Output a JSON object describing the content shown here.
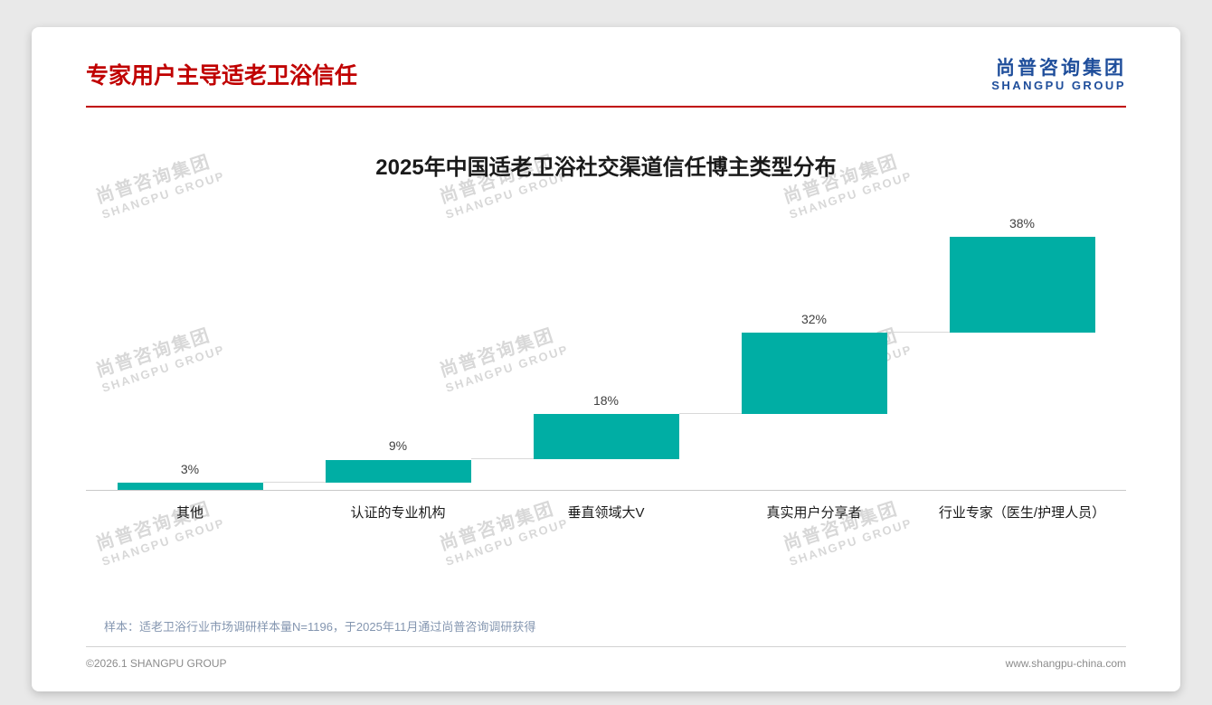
{
  "header": {
    "title": "专家用户主导适老卫浴信任",
    "accent_color": "#c00000"
  },
  "logo": {
    "cn": "尚普咨询集团",
    "en": "SHANGPU GROUP",
    "color": "#1f4e9b"
  },
  "watermark": {
    "cn": "尚普咨询集团",
    "en": "SHANGPU GROUP"
  },
  "chart_data": {
    "type": "bar",
    "subtype": "waterfall",
    "title": "2025年中国适老卫浴社交渠道信任博主类型分布",
    "categories": [
      "其他",
      "认证的专业机构",
      "垂直领域大V",
      "真实用户分享者",
      "行业专家（医生/护理人员）"
    ],
    "values": [
      3,
      9,
      18,
      32,
      38
    ],
    "value_suffix": "%",
    "bar_color": "#00aea4",
    "connector_color": "#d9d9d9",
    "ylim": [
      0,
      100
    ],
    "grid": false,
    "legend": "none"
  },
  "footnote": {
    "sample_note": "样本：适老卫浴行业市场调研样本量N=1196，于2025年11月通过尚普咨询调研获得"
  },
  "footer": {
    "copyright": "©2026.1 SHANGPU GROUP",
    "website": "www.shangpu-china.com"
  }
}
